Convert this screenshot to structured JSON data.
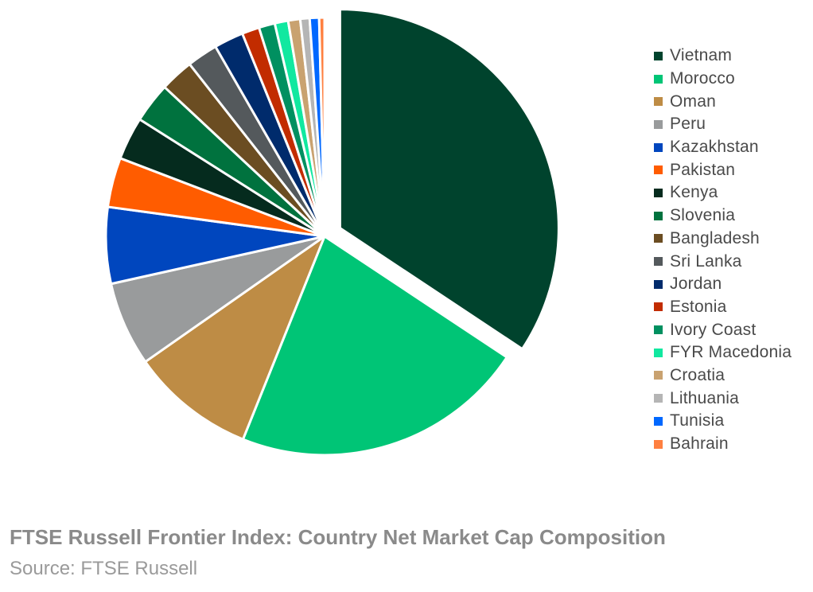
{
  "chart_data": {
    "type": "pie",
    "title": "FTSE Russell Frontier Index: Country Net Market Cap Composition",
    "source": "Source: FTSE Russell",
    "legend_position": "right",
    "exploded_first_slice": true,
    "slices": [
      {
        "label": "Vietnam",
        "value": 34.7,
        "color": "#00432D"
      },
      {
        "label": "Morocco",
        "value": 22.0,
        "color": "#00C576"
      },
      {
        "label": "Oman",
        "value": 9.3,
        "color": "#BE8C45"
      },
      {
        "label": "Peru",
        "value": 6.3,
        "color": "#999B9C"
      },
      {
        "label": "Kazakhstan",
        "value": 5.7,
        "color": "#0046BE"
      },
      {
        "label": "Pakistan",
        "value": 3.7,
        "color": "#FF5C00"
      },
      {
        "label": "Kenya",
        "value": 3.2,
        "color": "#052B1E"
      },
      {
        "label": "Slovenia",
        "value": 3.0,
        "color": "#00723E"
      },
      {
        "label": "Bangladesh",
        "value": 2.5,
        "color": "#6B4D22"
      },
      {
        "label": "Sri Lanka",
        "value": 2.3,
        "color": "#54595C"
      },
      {
        "label": "Jordan",
        "value": 2.2,
        "color": "#002B6C"
      },
      {
        "label": "Estonia",
        "value": 1.3,
        "color": "#C22C00"
      },
      {
        "label": "Ivory Coast",
        "value": 1.2,
        "color": "#009060"
      },
      {
        "label": "FYR Macedonia",
        "value": 1.0,
        "color": "#11E8A0"
      },
      {
        "label": "Croatia",
        "value": 0.9,
        "color": "#C9A270"
      },
      {
        "label": "Lithuania",
        "value": 0.7,
        "color": "#B5B5B5"
      },
      {
        "label": "Tunisia",
        "value": 0.7,
        "color": "#0068FF"
      },
      {
        "label": "Bahrain",
        "value": 0.4,
        "color": "#FF8040"
      }
    ]
  }
}
